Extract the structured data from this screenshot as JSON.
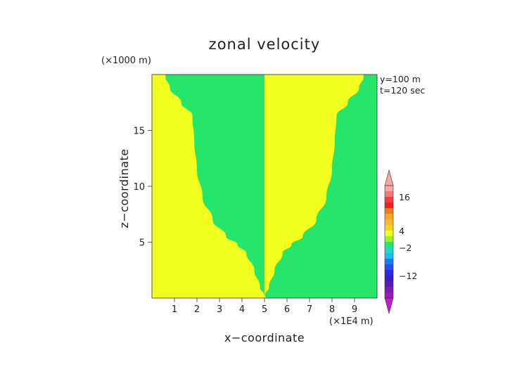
{
  "chart_data": {
    "type": "heatmap",
    "title": "zonal velocity",
    "xlabel": "x−coordinate",
    "ylabel": "z−coordinate",
    "x_unit": "(×1E4 m)",
    "y_unit": "(×1000 m)",
    "annotations": [
      "y=100 m",
      "t=120 sec"
    ],
    "xlim": [
      0,
      10
    ],
    "ylim": [
      0,
      20
    ],
    "x_ticks": [
      1,
      2,
      3,
      4,
      5,
      6,
      7,
      8,
      9
    ],
    "y_ticks": [
      5,
      10,
      15
    ],
    "colors": {
      "yellow": "#f1fe1e",
      "green": "#25e56a"
    },
    "boundary_left": [
      {
        "z": 0.2,
        "x": 5.0
      },
      {
        "z": 1.0,
        "x": 4.8
      },
      {
        "z": 2.5,
        "x": 4.55
      },
      {
        "z": 4.0,
        "x": 4.2
      },
      {
        "z": 4.8,
        "x": 3.8
      },
      {
        "z": 5.5,
        "x": 3.3
      },
      {
        "z": 7.0,
        "x": 2.7
      },
      {
        "z": 9.0,
        "x": 2.25
      },
      {
        "z": 11.5,
        "x": 2.0
      },
      {
        "z": 14.0,
        "x": 1.88
      },
      {
        "z": 16.3,
        "x": 1.8
      },
      {
        "z": 17.5,
        "x": 1.3
      },
      {
        "z": 18.8,
        "x": 0.8
      },
      {
        "z": 19.8,
        "x": 0.6
      }
    ],
    "boundary_right": [
      {
        "z": 0.2,
        "x": 5.0
      },
      {
        "z": 1.0,
        "x": 5.2
      },
      {
        "z": 2.5,
        "x": 5.45
      },
      {
        "z": 4.0,
        "x": 5.8
      },
      {
        "z": 4.8,
        "x": 6.2
      },
      {
        "z": 5.5,
        "x": 6.7
      },
      {
        "z": 7.0,
        "x": 7.3
      },
      {
        "z": 9.0,
        "x": 7.75
      },
      {
        "z": 11.5,
        "x": 8.0
      },
      {
        "z": 14.0,
        "x": 8.12
      },
      {
        "z": 16.3,
        "x": 8.2
      },
      {
        "z": 17.5,
        "x": 8.7
      },
      {
        "z": 18.8,
        "x": 9.2
      },
      {
        "z": 19.8,
        "x": 9.4
      }
    ],
    "colorbar": {
      "labels": [
        16,
        4,
        -2,
        -12
      ],
      "levels": [
        {
          "value": 20,
          "color": "#f6a8a8"
        },
        {
          "value": 18,
          "color": "#f47a7a"
        },
        {
          "value": 16,
          "color": "#f24040"
        },
        {
          "value": 14,
          "color": "#ef2020"
        },
        {
          "value": 12,
          "color": "#f07a1e"
        },
        {
          "value": 10,
          "color": "#f5a623"
        },
        {
          "value": 8,
          "color": "#f7b92c"
        },
        {
          "value": 6,
          "color": "#f3d31f"
        },
        {
          "value": 4,
          "color": "#f1fe1e"
        },
        {
          "value": 2,
          "color": "#9ef02a"
        },
        {
          "value": 0,
          "color": "#25e56a"
        },
        {
          "value": -2,
          "color": "#20d7cb"
        },
        {
          "value": -4,
          "color": "#1ac1e9"
        },
        {
          "value": -6,
          "color": "#1e7cf0"
        },
        {
          "value": -8,
          "color": "#2a4cf0"
        },
        {
          "value": -10,
          "color": "#2a2ae4"
        },
        {
          "value": -12,
          "color": "#3a1cc8"
        },
        {
          "value": -14,
          "color": "#5a1aba"
        },
        {
          "value": -16,
          "color": "#7a1cb0"
        },
        {
          "value": -18,
          "color": "#9a1cb8"
        },
        {
          "value": -20,
          "color": "#c21cc8"
        }
      ]
    }
  }
}
